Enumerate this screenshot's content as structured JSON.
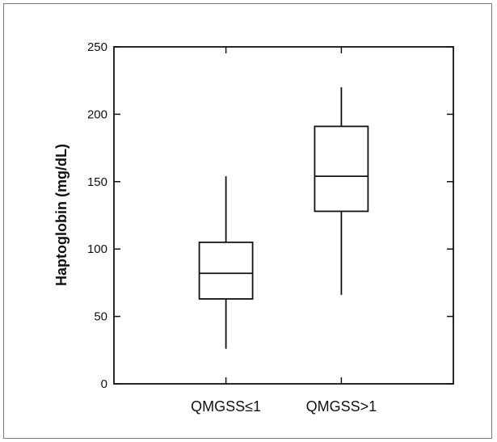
{
  "chart_data": {
    "type": "box",
    "title": "",
    "xlabel": "",
    "ylabel": "Haptoglobin (mg/dL)",
    "ylim": [
      0,
      250
    ],
    "yticks": [
      0,
      50,
      100,
      150,
      200,
      250
    ],
    "ytick_labels": [
      "0",
      "50",
      "100",
      "150",
      "200",
      "250"
    ],
    "categories": [
      "QMGSS≤1",
      "QMGSS>1"
    ],
    "boxes": [
      {
        "category": "QMGSS≤1",
        "min": 26,
        "q1": 63,
        "median": 82,
        "q3": 105,
        "max": 154
      },
      {
        "category": "QMGSS>1",
        "min": 66,
        "q1": 128,
        "median": 154,
        "q3": 191,
        "max": 220
      }
    ],
    "grid": false,
    "colors": {
      "line": "#111111",
      "background": "#ffffff"
    }
  }
}
